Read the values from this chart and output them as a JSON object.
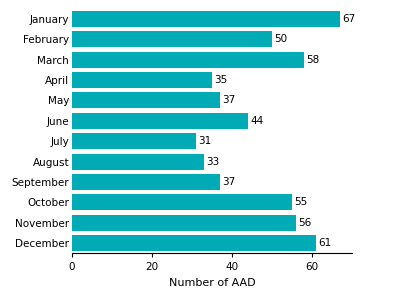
{
  "months": [
    "January",
    "February",
    "March",
    "April",
    "May",
    "June",
    "July",
    "August",
    "September",
    "October",
    "November",
    "December"
  ],
  "values": [
    67,
    50,
    58,
    35,
    37,
    44,
    31,
    33,
    37,
    55,
    56,
    61
  ],
  "bar_color": "#00ABB5",
  "xlabel": "Number of AAD",
  "xlim": [
    0,
    70
  ],
  "xticks": [
    0,
    20,
    40,
    60
  ],
  "label_fontsize": 8,
  "tick_fontsize": 7.5,
  "value_label_fontsize": 7.5,
  "bar_height": 0.78,
  "background_color": "#ffffff"
}
